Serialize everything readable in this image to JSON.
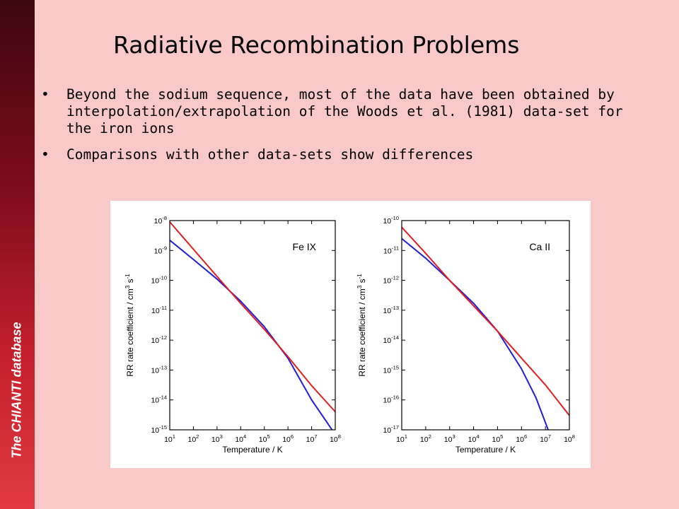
{
  "sidebar": {
    "label": "The CHIANTI database"
  },
  "slide": {
    "title": "Radiative Recombination Problems",
    "bullets": [
      {
        "marker": "•",
        "text": "Beyond the sodium sequence, most of the data have been obtained by interpolation/extrapolation of the Woods et al. (1981) data-set for the iron ions"
      },
      {
        "marker": "•",
        "text": "Comparisons with other data-sets show differences"
      }
    ]
  },
  "colors": {
    "series_a": "#1f1fdc",
    "series_b": "#e01e1e",
    "sidebar_dark": "#3d0710",
    "sidebar_light": "#e23a40",
    "background": "#f9c8c8"
  },
  "chart_data": [
    {
      "type": "line",
      "annotation": "Fe IX",
      "xlabel": "Temperature / K",
      "ylabel": "RR rate coefficient / cm3 s-1",
      "xscale": "log",
      "yscale": "log",
      "xlim": [
        10.0,
        100000000.0
      ],
      "ylim": [
        1e-15,
        1e-08
      ],
      "xticks": [
        "10^1",
        "10^2",
        "10^3",
        "10^4",
        "10^5",
        "10^6",
        "10^7",
        "10^8"
      ],
      "yticks": [
        "10^-15",
        "10^-14",
        "10^-13",
        "10^-12",
        "10^-11",
        "10^-10",
        "10^-9",
        "10^-8"
      ],
      "series": [
        {
          "x": [
            10.0,
            100.0,
            1000.0,
            10000.0,
            100000.0,
            1000000.0,
            10000000.0,
            100000000.0
          ],
          "y": [
            2.2e-09,
            5e-10,
            1.1e-10,
            2e-11,
            2.8e-12,
            2.5e-13,
            1e-14,
            7e-16
          ]
        },
        {
          "x": [
            10.0,
            100.0,
            1000.0,
            10000.0,
            100000.0,
            1000000.0,
            10000000.0,
            100000000.0
          ],
          "y": [
            9e-09,
            1.1e-09,
            1.35e-10,
            1.7e-11,
            2.3e-12,
            2.8e-13,
            3e-14,
            4e-15
          ]
        }
      ]
    },
    {
      "type": "line",
      "annotation": "Ca II",
      "xlabel": "Temperature / K",
      "ylabel": "RR rate coefficient / cm3 s-1",
      "xscale": "log",
      "yscale": "log",
      "xlim": [
        10.0,
        100000000.0
      ],
      "ylim": [
        1e-17,
        1e-10
      ],
      "xticks": [
        "10^1",
        "10^2",
        "10^3",
        "10^4",
        "10^5",
        "10^6",
        "10^7",
        "10^8"
      ],
      "yticks": [
        "10^-17",
        "10^-16",
        "10^-15",
        "10^-14",
        "10^-13",
        "10^-12",
        "10^-11",
        "10^-10"
      ],
      "series": [
        {
          "x": [
            10.0,
            100.0,
            1000.0,
            10000.0,
            100000.0,
            1000000.0,
            4000000.0,
            13000000.0
          ],
          "y": [
            2.5e-11,
            5.5e-12,
            1e-12,
            1.7e-13,
            2e-14,
            1.1e-15,
            1.2e-16,
            1e-17
          ]
        },
        {
          "x": [
            10.0,
            100.0,
            1000.0,
            10000.0,
            100000.0,
            1000000.0,
            10000000.0,
            100000000.0
          ],
          "y": [
            6e-11,
            8e-12,
            1e-12,
            1.4e-13,
            2e-14,
            2.5e-15,
            3.2e-16,
            3e-17
          ]
        }
      ]
    }
  ]
}
